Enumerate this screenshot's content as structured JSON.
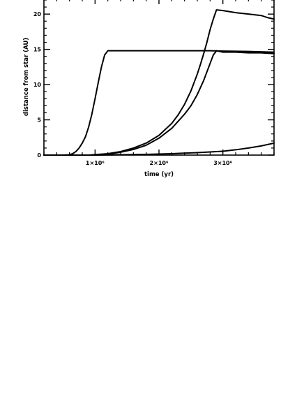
{
  "chart_data": {
    "type": "line",
    "title": "",
    "xlabel": "time (yr)",
    "ylabel": "distance from star (AU)",
    "xlim": [
      200000,
      3800000
    ],
    "ylim": [
      0,
      22
    ],
    "x_ticks": [
      {
        "value": 1000000,
        "label": "1×10⁶"
      },
      {
        "value": 2000000,
        "label": "2×10⁶"
      },
      {
        "value": 3000000,
        "label": "3×10⁶"
      }
    ],
    "y_ticks": [
      {
        "value": 0,
        "label": "0"
      },
      {
        "value": 5,
        "label": "5"
      },
      {
        "value": 10,
        "label": "10"
      },
      {
        "value": 15,
        "label": "15"
      },
      {
        "value": 20,
        "label": "20"
      }
    ],
    "grid": false,
    "series": [
      {
        "x": [
          200000,
          500000,
          600000,
          650000,
          700000,
          750000,
          800000,
          850000,
          900000,
          950000,
          1000000,
          1050000,
          1100000,
          1150000,
          1200000,
          1500000,
          2000000,
          2500000,
          2800000,
          3000000,
          3400000,
          3800000
        ],
        "y": [
          0,
          0,
          0.05,
          0.2,
          0.5,
          1.0,
          1.7,
          2.6,
          4.0,
          5.8,
          8.0,
          10.3,
          12.5,
          14.2,
          14.8,
          14.8,
          14.8,
          14.8,
          14.8,
          14.75,
          14.7,
          14.6
        ]
      },
      {
        "x": [
          200000,
          1000000,
          1200000,
          1400000,
          1600000,
          1800000,
          2000000,
          2200000,
          2400000,
          2500000,
          2600000,
          2700000,
          2800000,
          2850000,
          2900000,
          2950000,
          3000000,
          3200000,
          3400000,
          3600000,
          3800000
        ],
        "y": [
          0,
          0,
          0.15,
          0.4,
          0.8,
          1.4,
          2.4,
          3.8,
          5.8,
          7.0,
          8.6,
          10.6,
          13.0,
          14.2,
          14.8,
          14.7,
          14.6,
          14.6,
          14.5,
          14.5,
          14.4
        ]
      },
      {
        "x": [
          200000,
          900000,
          1200000,
          1400000,
          1600000,
          1800000,
          2000000,
          2200000,
          2300000,
          2400000,
          2500000,
          2600000,
          2650000,
          2700000,
          2750000,
          2800000,
          2850000,
          2900000,
          3000000,
          3200000,
          3400000,
          3600000,
          3700000,
          3800000
        ],
        "y": [
          0,
          0,
          0.2,
          0.5,
          1.0,
          1.7,
          2.8,
          4.5,
          5.7,
          7.2,
          9.1,
          11.5,
          12.9,
          14.4,
          16.0,
          17.8,
          19.3,
          20.6,
          20.5,
          20.2,
          20.0,
          19.8,
          19.5,
          19.3
        ]
      },
      {
        "x": [
          200000,
          1000000,
          1400000,
          1800000,
          2200000,
          2600000,
          3000000,
          3200000,
          3400000,
          3600000,
          3800000
        ],
        "y": [
          0,
          0,
          0.05,
          0.1,
          0.2,
          0.35,
          0.55,
          0.75,
          1.0,
          1.3,
          1.7
        ]
      }
    ]
  }
}
